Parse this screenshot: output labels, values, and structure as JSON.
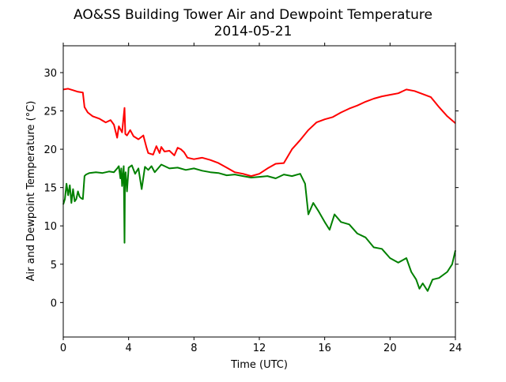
{
  "chart_data": {
    "type": "line",
    "title": "AO&SS Building Tower Air and Dewpoint Temperature",
    "subtitle": "2014-05-21",
    "xlabel": "Time (UTC)",
    "ylabel": "Air and Dewpoint Temperature (°C)",
    "xlim": [
      0,
      24
    ],
    "ylim": [
      -4.5,
      33.5
    ],
    "xticks": [
      0,
      4,
      8,
      12,
      16,
      20,
      24
    ],
    "yticks": [
      0,
      5,
      10,
      15,
      20,
      25,
      30
    ],
    "xtick_labels": [
      "0",
      "4",
      "8",
      "12",
      "16",
      "20",
      "24"
    ],
    "ytick_labels": [
      "0",
      "5",
      "10",
      "15",
      "20",
      "25",
      "30"
    ],
    "grid": false,
    "legend": "none",
    "series": [
      {
        "color": "#ff0000",
        "x": [
          0,
          0.3,
          0.6,
          0.9,
          1.2,
          1.3,
          1.5,
          1.8,
          2.2,
          2.6,
          2.9,
          3.1,
          3.3,
          3.4,
          3.6,
          3.75,
          3.8,
          3.9,
          4.1,
          4.3,
          4.6,
          4.9,
          5.1,
          5.2,
          5.5,
          5.7,
          5.9,
          6.0,
          6.2,
          6.5,
          6.8,
          7.0,
          7.2,
          7.4,
          7.6,
          8.0,
          8.5,
          9.0,
          9.5,
          10.0,
          10.5,
          11.0,
          11.5,
          12.0,
          12.5,
          13.0,
          13.5,
          14.0,
          14.5,
          15.0,
          15.5,
          16.0,
          16.5,
          17.0,
          17.5,
          18.0,
          18.5,
          19.0,
          19.5,
          20.0,
          20.5,
          21.0,
          21.5,
          22.0,
          22.5,
          23.0,
          23.5,
          24.0
        ],
        "y": [
          27.8,
          27.9,
          27.7,
          27.5,
          27.4,
          25.5,
          24.8,
          24.3,
          24.0,
          23.5,
          23.8,
          23.2,
          21.5,
          23.0,
          22.2,
          25.4,
          22.0,
          21.8,
          22.5,
          21.7,
          21.3,
          21.8,
          20.2,
          19.5,
          19.3,
          20.4,
          19.5,
          20.3,
          19.7,
          19.8,
          19.2,
          20.2,
          20.0,
          19.6,
          18.9,
          18.7,
          18.9,
          18.6,
          18.2,
          17.6,
          17.0,
          16.8,
          16.5,
          16.8,
          17.5,
          18.1,
          18.2,
          20.0,
          21.2,
          22.5,
          23.5,
          23.9,
          24.2,
          24.8,
          25.3,
          25.7,
          26.2,
          26.6,
          26.9,
          27.1,
          27.3,
          27.8,
          27.6,
          27.2,
          26.8,
          25.5,
          24.3,
          23.4
        ]
      },
      {
        "color": "#008000",
        "x": [
          0,
          0.1,
          0.2,
          0.3,
          0.4,
          0.5,
          0.6,
          0.7,
          0.8,
          0.9,
          1.0,
          1.1,
          1.2,
          1.3,
          1.4,
          1.6,
          2.0,
          2.4,
          2.8,
          3.1,
          3.3,
          3.4,
          3.5,
          3.55,
          3.6,
          3.7,
          3.75,
          3.78,
          3.82,
          3.9,
          4.0,
          4.2,
          4.4,
          4.6,
          4.8,
          5.0,
          5.2,
          5.4,
          5.6,
          5.8,
          6.0,
          6.5,
          7.0,
          7.5,
          8.0,
          8.5,
          9.0,
          9.5,
          10.0,
          10.5,
          11.0,
          11.5,
          12.0,
          12.5,
          13.0,
          13.5,
          14.0,
          14.5,
          14.8,
          15.0,
          15.3,
          15.6,
          16.0,
          16.3,
          16.6,
          17.0,
          17.5,
          18.0,
          18.5,
          19.0,
          19.5,
          20.0,
          20.5,
          21.0,
          21.3,
          21.6,
          21.8,
          22.0,
          22.3,
          22.6,
          23.0,
          23.5,
          23.8,
          24.0
        ],
        "y": [
          12.8,
          13.5,
          15.5,
          14.0,
          15.3,
          13.0,
          14.8,
          13.2,
          13.5,
          14.5,
          13.8,
          13.6,
          13.5,
          16.5,
          16.7,
          16.9,
          17.0,
          16.9,
          17.1,
          17.0,
          17.5,
          17.8,
          16.2,
          17.5,
          15.2,
          17.8,
          7.8,
          16.5,
          17.0,
          14.5,
          17.6,
          17.9,
          16.8,
          17.5,
          14.8,
          17.7,
          17.3,
          17.8,
          17.0,
          17.5,
          18.0,
          17.5,
          17.6,
          17.3,
          17.5,
          17.2,
          17.0,
          16.9,
          16.6,
          16.7,
          16.5,
          16.3,
          16.4,
          16.5,
          16.2,
          16.7,
          16.5,
          16.8,
          15.5,
          11.5,
          13.0,
          12.0,
          10.5,
          9.5,
          11.5,
          10.5,
          10.2,
          9.0,
          8.5,
          7.2,
          7.0,
          5.8,
          5.2,
          5.8,
          4.0,
          3.0,
          1.8,
          2.5,
          1.5,
          3.0,
          3.2,
          4.0,
          5.0,
          6.8
        ]
      }
    ]
  }
}
